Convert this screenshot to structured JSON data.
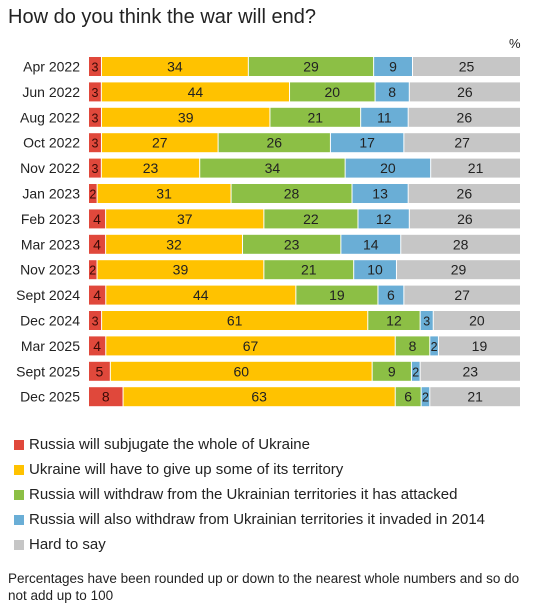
{
  "chart_data": {
    "type": "bar",
    "orientation": "horizontal",
    "stacked": true,
    "title": "How do you think the war will end?",
    "unit_label": "%",
    "categories": [
      "Apr 2022",
      "Jun 2022",
      "Aug 2022",
      "Oct 2022",
      "Nov 2022",
      "Jan 2023",
      "Feb 2023",
      "Mar 2023",
      "Nov 2023",
      "Sept 2024",
      "Dec 2024",
      "Mar 2025",
      "Sept 2025",
      "Dec 2025"
    ],
    "series": [
      {
        "name": "Russia will subjugate the whole of Ukraine",
        "color": "#e0483b",
        "values": [
          3,
          3,
          3,
          3,
          3,
          2,
          4,
          4,
          2,
          4,
          3,
          4,
          5,
          8
        ]
      },
      {
        "name": "Ukraine will have to give up some of its territory",
        "color": "#ffc200",
        "values": [
          34,
          44,
          39,
          27,
          23,
          31,
          37,
          32,
          39,
          44,
          61,
          67,
          60,
          63
        ]
      },
      {
        "name": "Russia will withdraw from the Ukrainian territories it has attacked",
        "color": "#8cbf45",
        "values": [
          29,
          20,
          21,
          26,
          34,
          28,
          22,
          23,
          21,
          19,
          12,
          8,
          9,
          6
        ]
      },
      {
        "name": "Russia will also withdraw from Ukrainian territories it invaded in 2014",
        "color": "#6aaed6",
        "values": [
          9,
          8,
          11,
          17,
          20,
          13,
          12,
          14,
          10,
          6,
          3,
          2,
          2,
          2
        ]
      },
      {
        "name": "Hard to say",
        "color": "#c6c6c6",
        "values": [
          25,
          26,
          26,
          27,
          21,
          26,
          26,
          28,
          29,
          27,
          20,
          19,
          23,
          21
        ]
      }
    ],
    "legend_position": "bottom",
    "grid": false
  },
  "note": "Percentages have been rounded up or down to the nearest whole numbers and so do not add up to 100"
}
